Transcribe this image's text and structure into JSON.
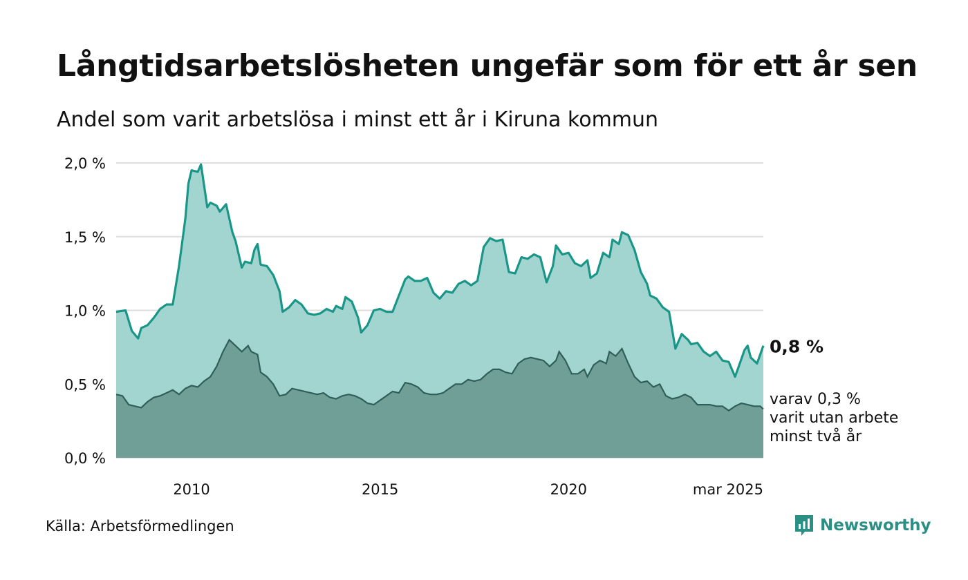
{
  "header": {
    "title": "Långtidsarbetslösheten ungefär som för ett år sen",
    "subtitle": "Andel som varit arbetslösa i minst ett år i Kiruna kommun"
  },
  "footer": {
    "source": "Källa: Arbetsförmedlingen",
    "brand": "Newsworthy"
  },
  "colors": {
    "series_1_line": "#1a9688",
    "series_1_fill": "#a3d5d0",
    "series_2_line": "#2f5f58",
    "series_2_fill": "#6f9f97",
    "gridline": "#dedede",
    "brand": "#2a8f85"
  },
  "chart_data": {
    "type": "area",
    "title": "Långtidsarbetslösheten ungefär som för ett år sen",
    "subtitle": "Andel som varit arbetslösa i minst ett år i Kiruna kommun",
    "xlim": [
      "2008-01",
      "2025-03"
    ],
    "ylim": [
      0,
      2.0
    ],
    "y_ticks": [
      {
        "value": 0.0,
        "label": "0,0 %"
      },
      {
        "value": 0.5,
        "label": "0,5 %"
      },
      {
        "value": 1.0,
        "label": "1,0 %"
      },
      {
        "value": 1.5,
        "label": "1,5 %"
      },
      {
        "value": 2.0,
        "label": "2,0 %"
      }
    ],
    "x_ticks": [
      {
        "value": "2010-01",
        "label": "2010"
      },
      {
        "value": "2015-01",
        "label": "2015"
      },
      {
        "value": "2020-01",
        "label": "2020"
      },
      {
        "value": "2025-03",
        "label": "mar 2025"
      }
    ],
    "grid": true,
    "legend": "none",
    "series": [
      {
        "points": [
          [
            "2008-01",
            0.99
          ],
          [
            "2008-04",
            1.0
          ],
          [
            "2008-06",
            0.86
          ],
          [
            "2008-08",
            0.81
          ],
          [
            "2008-09",
            0.88
          ],
          [
            "2008-11",
            0.9
          ],
          [
            "2009-01",
            0.95
          ],
          [
            "2009-03",
            1.01
          ],
          [
            "2009-05",
            1.04
          ],
          [
            "2009-07",
            1.04
          ],
          [
            "2009-09",
            1.3
          ],
          [
            "2009-11",
            1.62
          ],
          [
            "2009-12",
            1.86
          ],
          [
            "2010-01",
            1.95
          ],
          [
            "2010-03",
            1.94
          ],
          [
            "2010-04",
            1.99
          ],
          [
            "2010-06",
            1.7
          ],
          [
            "2010-07",
            1.73
          ],
          [
            "2010-09",
            1.71
          ],
          [
            "2010-10",
            1.67
          ],
          [
            "2010-12",
            1.72
          ],
          [
            "2011-02",
            1.53
          ],
          [
            "2011-03",
            1.47
          ],
          [
            "2011-05",
            1.29
          ],
          [
            "2011-06",
            1.33
          ],
          [
            "2011-08",
            1.32
          ],
          [
            "2011-09",
            1.41
          ],
          [
            "2011-10",
            1.45
          ],
          [
            "2011-11",
            1.31
          ],
          [
            "2012-01",
            1.3
          ],
          [
            "2012-03",
            1.24
          ],
          [
            "2012-05",
            1.13
          ],
          [
            "2012-06",
            0.99
          ],
          [
            "2012-08",
            1.02
          ],
          [
            "2012-10",
            1.07
          ],
          [
            "2012-12",
            1.04
          ],
          [
            "2013-02",
            0.98
          ],
          [
            "2013-04",
            0.97
          ],
          [
            "2013-06",
            0.98
          ],
          [
            "2013-08",
            1.01
          ],
          [
            "2013-10",
            0.99
          ],
          [
            "2013-11",
            1.03
          ],
          [
            "2014-01",
            1.01
          ],
          [
            "2014-02",
            1.09
          ],
          [
            "2014-04",
            1.06
          ],
          [
            "2014-06",
            0.95
          ],
          [
            "2014-07",
            0.85
          ],
          [
            "2014-09",
            0.9
          ],
          [
            "2014-11",
            1.0
          ],
          [
            "2015-01",
            1.01
          ],
          [
            "2015-03",
            0.99
          ],
          [
            "2015-05",
            0.99
          ],
          [
            "2015-07",
            1.1
          ],
          [
            "2015-09",
            1.21
          ],
          [
            "2015-10",
            1.23
          ],
          [
            "2015-12",
            1.2
          ],
          [
            "2016-02",
            1.2
          ],
          [
            "2016-04",
            1.22
          ],
          [
            "2016-06",
            1.12
          ],
          [
            "2016-08",
            1.08
          ],
          [
            "2016-10",
            1.13
          ],
          [
            "2016-12",
            1.12
          ],
          [
            "2017-02",
            1.18
          ],
          [
            "2017-04",
            1.2
          ],
          [
            "2017-06",
            1.17
          ],
          [
            "2017-08",
            1.2
          ],
          [
            "2017-10",
            1.43
          ],
          [
            "2017-12",
            1.49
          ],
          [
            "2018-02",
            1.47
          ],
          [
            "2018-04",
            1.48
          ],
          [
            "2018-06",
            1.26
          ],
          [
            "2018-08",
            1.25
          ],
          [
            "2018-10",
            1.36
          ],
          [
            "2018-12",
            1.35
          ],
          [
            "2019-02",
            1.38
          ],
          [
            "2019-04",
            1.36
          ],
          [
            "2019-06",
            1.19
          ],
          [
            "2019-08",
            1.3
          ],
          [
            "2019-09",
            1.44
          ],
          [
            "2019-11",
            1.38
          ],
          [
            "2020-01",
            1.39
          ],
          [
            "2020-03",
            1.32
          ],
          [
            "2020-05",
            1.3
          ],
          [
            "2020-07",
            1.34
          ],
          [
            "2020-08",
            1.22
          ],
          [
            "2020-10",
            1.25
          ],
          [
            "2020-12",
            1.39
          ],
          [
            "2021-02",
            1.36
          ],
          [
            "2021-03",
            1.48
          ],
          [
            "2021-05",
            1.45
          ],
          [
            "2021-06",
            1.53
          ],
          [
            "2021-08",
            1.51
          ],
          [
            "2021-10",
            1.41
          ],
          [
            "2021-12",
            1.26
          ],
          [
            "2022-02",
            1.18
          ],
          [
            "2022-03",
            1.1
          ],
          [
            "2022-05",
            1.08
          ],
          [
            "2022-07",
            1.02
          ],
          [
            "2022-09",
            0.99
          ],
          [
            "2022-11",
            0.74
          ],
          [
            "2023-01",
            0.84
          ],
          [
            "2023-03",
            0.8
          ],
          [
            "2023-04",
            0.77
          ],
          [
            "2023-06",
            0.78
          ],
          [
            "2023-08",
            0.72
          ],
          [
            "2023-10",
            0.69
          ],
          [
            "2023-12",
            0.72
          ],
          [
            "2024-02",
            0.66
          ],
          [
            "2024-04",
            0.65
          ],
          [
            "2024-06",
            0.55
          ],
          [
            "2024-07",
            0.61
          ],
          [
            "2024-09",
            0.73
          ],
          [
            "2024-10",
            0.76
          ],
          [
            "2024-11",
            0.68
          ],
          [
            "2025-01",
            0.64
          ],
          [
            "2025-03",
            0.76
          ]
        ],
        "end_label": "0,8 %",
        "line_color": "#1a9688",
        "fill_color": "#a3d5d0"
      },
      {
        "points": [
          [
            "2008-01",
            0.43
          ],
          [
            "2008-03",
            0.42
          ],
          [
            "2008-05",
            0.36
          ],
          [
            "2008-07",
            0.35
          ],
          [
            "2008-09",
            0.34
          ],
          [
            "2008-11",
            0.38
          ],
          [
            "2009-01",
            0.41
          ],
          [
            "2009-03",
            0.42
          ],
          [
            "2009-05",
            0.44
          ],
          [
            "2009-07",
            0.46
          ],
          [
            "2009-09",
            0.43
          ],
          [
            "2009-11",
            0.47
          ],
          [
            "2010-01",
            0.49
          ],
          [
            "2010-03",
            0.48
          ],
          [
            "2010-05",
            0.52
          ],
          [
            "2010-07",
            0.55
          ],
          [
            "2010-09",
            0.62
          ],
          [
            "2010-11",
            0.72
          ],
          [
            "2011-01",
            0.8
          ],
          [
            "2011-03",
            0.76
          ],
          [
            "2011-05",
            0.72
          ],
          [
            "2011-07",
            0.76
          ],
          [
            "2011-08",
            0.72
          ],
          [
            "2011-10",
            0.7
          ],
          [
            "2011-11",
            0.58
          ],
          [
            "2012-01",
            0.55
          ],
          [
            "2012-03",
            0.5
          ],
          [
            "2012-05",
            0.42
          ],
          [
            "2012-07",
            0.43
          ],
          [
            "2012-09",
            0.47
          ],
          [
            "2012-11",
            0.46
          ],
          [
            "2013-01",
            0.45
          ],
          [
            "2013-03",
            0.44
          ],
          [
            "2013-05",
            0.43
          ],
          [
            "2013-07",
            0.44
          ],
          [
            "2013-09",
            0.41
          ],
          [
            "2013-11",
            0.4
          ],
          [
            "2014-01",
            0.42
          ],
          [
            "2014-03",
            0.43
          ],
          [
            "2014-05",
            0.42
          ],
          [
            "2014-07",
            0.4
          ],
          [
            "2014-09",
            0.37
          ],
          [
            "2014-11",
            0.36
          ],
          [
            "2015-01",
            0.39
          ],
          [
            "2015-03",
            0.42
          ],
          [
            "2015-05",
            0.45
          ],
          [
            "2015-07",
            0.44
          ],
          [
            "2015-09",
            0.51
          ],
          [
            "2015-11",
            0.5
          ],
          [
            "2016-01",
            0.48
          ],
          [
            "2016-03",
            0.44
          ],
          [
            "2016-05",
            0.43
          ],
          [
            "2016-07",
            0.43
          ],
          [
            "2016-09",
            0.44
          ],
          [
            "2016-11",
            0.47
          ],
          [
            "2017-01",
            0.5
          ],
          [
            "2017-03",
            0.5
          ],
          [
            "2017-05",
            0.53
          ],
          [
            "2017-07",
            0.52
          ],
          [
            "2017-09",
            0.53
          ],
          [
            "2017-11",
            0.57
          ],
          [
            "2018-01",
            0.6
          ],
          [
            "2018-03",
            0.6
          ],
          [
            "2018-05",
            0.58
          ],
          [
            "2018-07",
            0.57
          ],
          [
            "2018-09",
            0.64
          ],
          [
            "2018-11",
            0.67
          ],
          [
            "2019-01",
            0.68
          ],
          [
            "2019-03",
            0.67
          ],
          [
            "2019-05",
            0.66
          ],
          [
            "2019-07",
            0.62
          ],
          [
            "2019-09",
            0.66
          ],
          [
            "2019-10",
            0.72
          ],
          [
            "2019-12",
            0.66
          ],
          [
            "2020-02",
            0.57
          ],
          [
            "2020-04",
            0.57
          ],
          [
            "2020-06",
            0.6
          ],
          [
            "2020-07",
            0.55
          ],
          [
            "2020-09",
            0.63
          ],
          [
            "2020-11",
            0.66
          ],
          [
            "2021-01",
            0.64
          ],
          [
            "2021-02",
            0.72
          ],
          [
            "2021-04",
            0.69
          ],
          [
            "2021-06",
            0.74
          ],
          [
            "2021-08",
            0.64
          ],
          [
            "2021-10",
            0.55
          ],
          [
            "2021-12",
            0.51
          ],
          [
            "2022-02",
            0.52
          ],
          [
            "2022-04",
            0.48
          ],
          [
            "2022-06",
            0.5
          ],
          [
            "2022-08",
            0.42
          ],
          [
            "2022-10",
            0.4
          ],
          [
            "2022-12",
            0.41
          ],
          [
            "2023-02",
            0.43
          ],
          [
            "2023-04",
            0.41
          ],
          [
            "2023-06",
            0.36
          ],
          [
            "2023-08",
            0.36
          ],
          [
            "2023-10",
            0.36
          ],
          [
            "2023-12",
            0.35
          ],
          [
            "2024-02",
            0.35
          ],
          [
            "2024-04",
            0.32
          ],
          [
            "2024-06",
            0.35
          ],
          [
            "2024-08",
            0.37
          ],
          [
            "2024-10",
            0.36
          ],
          [
            "2024-12",
            0.35
          ],
          [
            "2025-02",
            0.35
          ],
          [
            "2025-03",
            0.33
          ]
        ],
        "end_label": "varav 0,3 %",
        "end_label_lines": [
          "varav 0,3 %",
          "varit utan arbete",
          "minst två år"
        ],
        "line_color": "#2f5f58",
        "fill_color": "#6f9f97"
      }
    ]
  }
}
